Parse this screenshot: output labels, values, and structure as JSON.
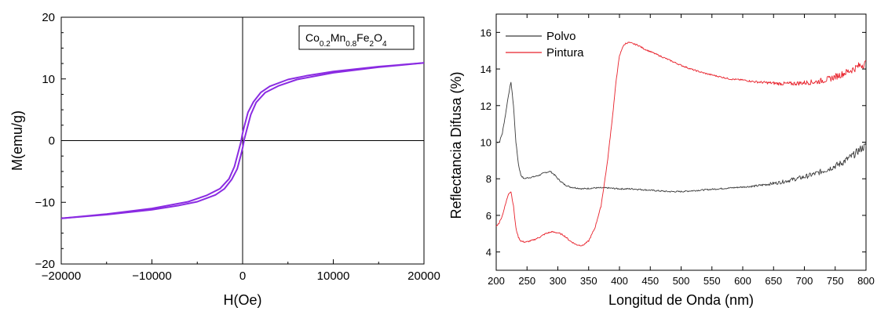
{
  "chart_data": [
    {
      "type": "line",
      "xlabel": "H(Oe)",
      "ylabel": "M(emu/g)",
      "xlim": [
        -20000,
        20000
      ],
      "ylim": [
        -20,
        20
      ],
      "xticks": [
        -20000,
        -10000,
        0,
        10000,
        20000
      ],
      "yticks": [
        -20,
        -10,
        0,
        10,
        20
      ],
      "legend_box": {
        "formula_parts": [
          {
            "t": "Co",
            "sub": false
          },
          {
            "t": "0.2",
            "sub": true
          },
          {
            "t": "Mn",
            "sub": false
          },
          {
            "t": "0.8",
            "sub": true
          },
          {
            "t": "Fe",
            "sub": false
          },
          {
            "t": "2",
            "sub": true
          },
          {
            "t": "O",
            "sub": false
          },
          {
            "t": "4",
            "sub": true
          }
        ],
        "placement": "top-right"
      },
      "line_color": "#8a2be2",
      "series": [
        {
          "branch": "descending",
          "x": [
            20000,
            15000,
            10000,
            7000,
            5000,
            3000,
            2000,
            1200,
            600,
            200,
            0,
            -200,
            -500,
            -900,
            -1500,
            -2500,
            -4000,
            -6000,
            -10000,
            -15000,
            -20000
          ],
          "y": [
            12.6,
            12.0,
            11.2,
            10.5,
            9.9,
            8.8,
            7.8,
            6.3,
            4.6,
            2.4,
            1.2,
            -0.3,
            -2.0,
            -4.2,
            -6.2,
            -7.8,
            -8.9,
            -9.9,
            -11.0,
            -11.9,
            -12.6
          ]
        },
        {
          "branch": "ascending",
          "x": [
            -20000,
            -15000,
            -10000,
            -7000,
            -5000,
            -3000,
            -2000,
            -1200,
            -600,
            -200,
            0,
            200,
            500,
            900,
            1500,
            2500,
            4000,
            6000,
            10000,
            15000,
            20000
          ],
          "y": [
            -12.6,
            -12.0,
            -11.2,
            -10.5,
            -9.9,
            -8.8,
            -7.8,
            -6.3,
            -4.6,
            -2.4,
            -1.2,
            0.3,
            2.0,
            4.2,
            6.2,
            7.8,
            8.9,
            9.9,
            11.0,
            11.9,
            12.6
          ]
        }
      ]
    },
    {
      "type": "line",
      "xlabel": "Longitud de Onda (nm)",
      "ylabel": "Reflectancia Difusa (%)",
      "xlim": [
        200,
        800
      ],
      "ylim": [
        3,
        17
      ],
      "xticks": [
        200,
        250,
        300,
        350,
        400,
        450,
        500,
        550,
        600,
        650,
        700,
        750,
        800
      ],
      "yticks": [
        4,
        6,
        8,
        10,
        12,
        14,
        16
      ],
      "legend_placement": "top-left",
      "series": [
        {
          "name": "Polvo",
          "color": "#3a3a3a",
          "x": [
            200,
            205,
            210,
            215,
            220,
            224,
            228,
            232,
            236,
            240,
            245,
            250,
            260,
            270,
            280,
            288,
            295,
            300,
            310,
            320,
            330,
            340,
            360,
            380,
            400,
            420,
            440,
            460,
            480,
            500,
            520,
            540,
            560,
            580,
            600,
            620,
            640,
            660,
            680,
            700,
            720,
            740,
            760,
            780,
            790,
            800
          ],
          "y": [
            10.0,
            10.0,
            10.5,
            11.5,
            12.6,
            13.3,
            12.0,
            10.0,
            8.8,
            8.2,
            8.0,
            8.05,
            8.1,
            8.2,
            8.35,
            8.4,
            8.2,
            8.0,
            7.7,
            7.55,
            7.5,
            7.45,
            7.5,
            7.5,
            7.45,
            7.45,
            7.4,
            7.35,
            7.3,
            7.3,
            7.35,
            7.4,
            7.45,
            7.5,
            7.55,
            7.6,
            7.7,
            7.8,
            7.95,
            8.1,
            8.3,
            8.55,
            8.85,
            9.3,
            9.6,
            9.8
          ]
        },
        {
          "name": "Pintura",
          "color": "#e8202a",
          "x": [
            200,
            205,
            210,
            215,
            220,
            224,
            228,
            232,
            236,
            240,
            245,
            250,
            260,
            270,
            280,
            290,
            300,
            310,
            320,
            330,
            340,
            350,
            360,
            370,
            380,
            390,
            395,
            400,
            405,
            410,
            415,
            420,
            430,
            440,
            460,
            480,
            500,
            520,
            540,
            560,
            580,
            600,
            620,
            640,
            660,
            680,
            700,
            720,
            740,
            760,
            780,
            790,
            800
          ],
          "y": [
            5.4,
            5.6,
            6.0,
            6.6,
            7.2,
            7.3,
            6.5,
            5.3,
            4.8,
            4.6,
            4.55,
            4.55,
            4.65,
            4.8,
            5.0,
            5.1,
            5.05,
            4.9,
            4.6,
            4.4,
            4.35,
            4.6,
            5.3,
            6.5,
            8.8,
            11.8,
            13.5,
            14.7,
            15.2,
            15.4,
            15.45,
            15.4,
            15.3,
            15.1,
            14.8,
            14.5,
            14.2,
            13.95,
            13.75,
            13.6,
            13.45,
            13.4,
            13.3,
            13.25,
            13.2,
            13.2,
            13.25,
            13.3,
            13.45,
            13.7,
            14.0,
            14.2,
            14.3
          ]
        }
      ]
    }
  ]
}
